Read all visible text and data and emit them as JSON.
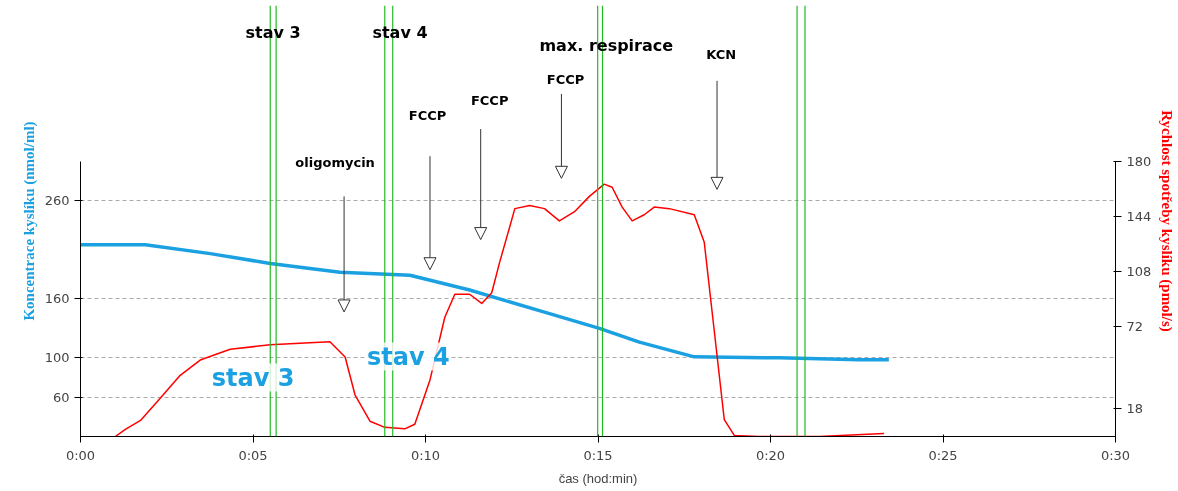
{
  "chart_data": {
    "type": "line",
    "xlabel": "čas (hod:min)",
    "ylabel": "Koncentrace kyslíku (nmol/ml)",
    "y2label": "Rychlost spotřeby kyslíku (pmol/s)",
    "xlim": [
      0,
      30
    ],
    "xticks": [
      {
        "value": 0,
        "label": "0:00"
      },
      {
        "value": 5,
        "label": "0:05"
      },
      {
        "value": 10,
        "label": "0:10"
      },
      {
        "value": 15,
        "label": "0:15"
      },
      {
        "value": 20,
        "label": "0:20"
      },
      {
        "value": 25,
        "label": "0:25"
      },
      {
        "value": 30,
        "label": "0:30"
      }
    ],
    "ylim": [
      20,
      300
    ],
    "yticks": [
      60,
      100,
      160,
      260
    ],
    "y2lim": [
      0,
      180
    ],
    "y2ticks": [
      18,
      72,
      108,
      144,
      180
    ],
    "grid": "y",
    "marker": "none",
    "line_style": "solid",
    "series": [
      {
        "color": "#1ba1e2",
        "x": [
          0,
          1.88,
          3.76,
          5.5,
          7.52,
          9.55,
          11.28,
          13.3,
          15.04,
          16.2,
          17.79,
          20.25,
          22.56,
          23.43
        ],
        "values": [
          215,
          215,
          206,
          196,
          187,
          184,
          169,
          148,
          130,
          116,
          101,
          100,
          98,
          98
        ]
      },
      {
        "color": "#ff0000",
        "axis": "y2",
        "x": [
          1.01,
          1.3,
          1.74,
          2.31,
          2.89,
          3.47,
          4.34,
          5.5,
          6.36,
          7.23,
          7.67,
          7.96,
          8.39,
          8.82,
          9.4,
          9.69,
          10.13,
          10.56,
          10.85,
          11.28,
          11.63,
          11.92,
          12.15,
          12.15,
          12.44,
          12.59,
          13.02,
          13.45,
          13.88,
          14.32,
          14.75,
          15.18,
          15.41,
          15.7,
          15.99,
          16.34,
          16.63,
          17.07,
          17.79,
          18.08,
          18.37,
          18.66,
          18.95,
          19.67,
          21.41,
          23.29
        ],
        "values": [
          0,
          4.6,
          10.5,
          25,
          40,
          50,
          57,
          60,
          61,
          62,
          52,
          27,
          10,
          6,
          5,
          8,
          37,
          78,
          93,
          93,
          87,
          94,
          114,
          114,
          137,
          149,
          151,
          149,
          141,
          147,
          157,
          165,
          163,
          150,
          141,
          145,
          150,
          149,
          145,
          127,
          69,
          11,
          0.7,
          0,
          0,
          2
        ]
      }
    ],
    "ref_lines": [
      {
        "axis": "x",
        "value": 5.5,
        "color": "#22bb22"
      },
      {
        "axis": "x",
        "value": 5.67,
        "color": "#22bb22"
      },
      {
        "axis": "x",
        "value": 8.82,
        "color": "#22bb22"
      },
      {
        "axis": "x",
        "value": 9.05,
        "color": "#22bb22"
      },
      {
        "axis": "x",
        "value": 14.99,
        "color": "#22bb22"
      },
      {
        "axis": "x",
        "value": 15.13,
        "color": "#22bb22"
      },
      {
        "axis": "x",
        "value": 20.77,
        "color": "#22bb22"
      },
      {
        "axis": "x",
        "value": 21.0,
        "color": "#22bb22"
      }
    ],
    "annotations": [
      "stav 3",
      "stav 4",
      "max. respirace",
      "KCN",
      "oligomycin",
      "FCCP",
      "FCCP",
      "FCCP",
      "stav 3",
      "stav 4"
    ]
  }
}
